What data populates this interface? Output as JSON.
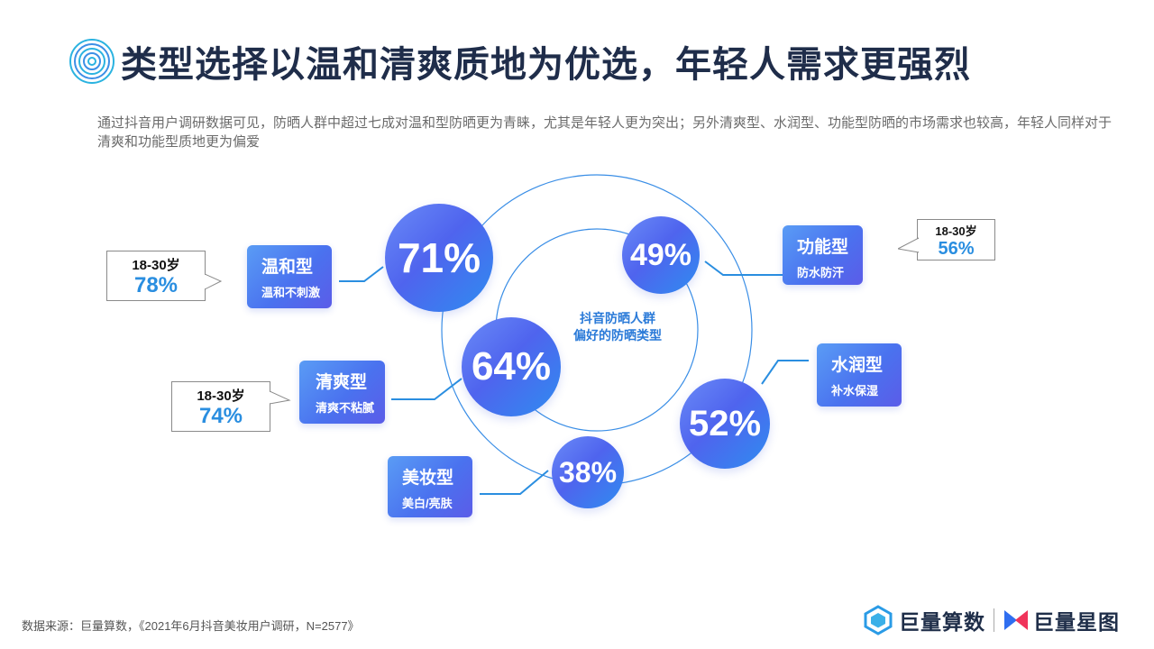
{
  "title": "类型选择以温和清爽质地为优选，年轻人需求更强烈",
  "subtitle": "通过抖音用户调研数据可见，防晒人群中超过七成对温和型防晒更为青睐，尤其是年轻人更为突出；另外清爽型、水润型、功能型防晒的市场需求也较高，年轻人同样对于清爽和功能型质地更为偏爱",
  "center_label": {
    "line1": "抖音防晒人群",
    "line2": "偏好的防晒类型"
  },
  "types": [
    {
      "id": "wenhe",
      "pct": "71%",
      "title": "温和型",
      "sub": "温和不刺激"
    },
    {
      "id": "qingshuang",
      "pct": "64%",
      "title": "清爽型",
      "sub": "清爽不粘腻"
    },
    {
      "id": "meizhuang",
      "pct": "38%",
      "title": "美妆型",
      "sub": "美白/亮肤"
    },
    {
      "id": "shuirun",
      "pct": "52%",
      "title": "水润型",
      "sub": "补水保湿"
    },
    {
      "id": "gongneng",
      "pct": "49%",
      "title": "功能型",
      "sub": "防水防汗"
    }
  ],
  "callouts": [
    {
      "for": "wenhe",
      "age": "18-30岁",
      "pct": "78%"
    },
    {
      "for": "qingshuang",
      "age": "18-30岁",
      "pct": "74%"
    },
    {
      "for": "gongneng",
      "age": "18-30岁",
      "pct": "56%"
    }
  ],
  "source": "数据来源：巨量算数，《2021年6月抖音美妆用户调研，N=2577》",
  "logos": {
    "left": "巨量算数",
    "right": "巨量星图"
  },
  "colors": {
    "title": "#1f2d4a",
    "accent_blue": "#2a8ee0",
    "bubble_gradient": [
      "#6a8bf7",
      "#4f64ee",
      "#2f8cf0"
    ],
    "card_gradient": [
      "#5a9cf5",
      "#4a72ef",
      "#5b5ce8"
    ],
    "ring": "#3a8ee6"
  }
}
